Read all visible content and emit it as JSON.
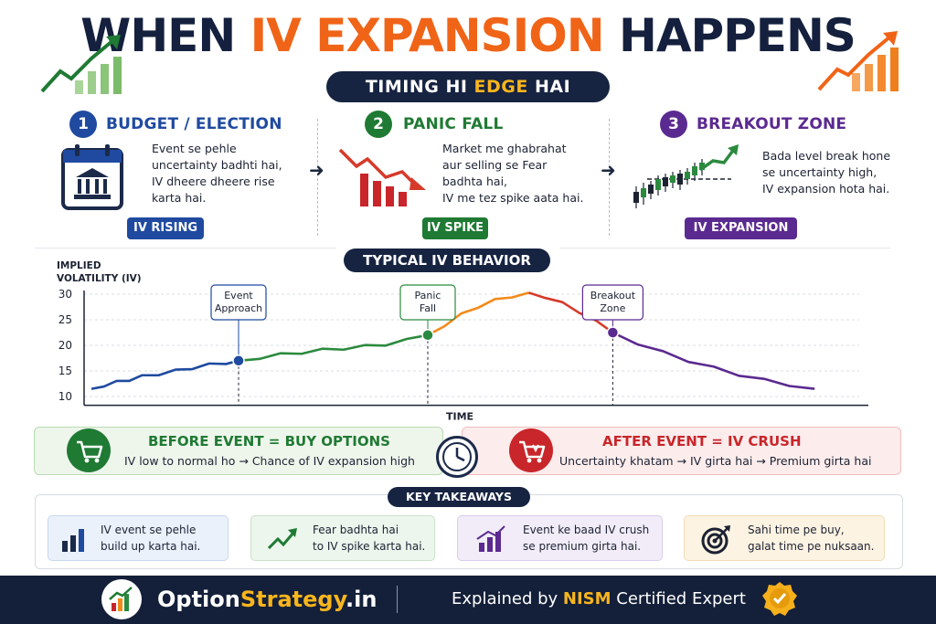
{
  "header": {
    "title_pre": "WHEN ",
    "title_highlight": "IV EXPANSION",
    "title_post": " HAPPENS",
    "subtitle_pre": "TIMING HI ",
    "subtitle_highlight": "EDGE",
    "subtitle_post": " HAI"
  },
  "sections": [
    {
      "number": "1",
      "title": "BUDGET / ELECTION",
      "lines": [
        "Event se pehle",
        "uncertainty badhti hai,",
        "IV dheere dheere rise",
        "karta hai."
      ],
      "tag": "IV RISING",
      "color": "#1f4aa0",
      "icon": "calendar-bank-icon"
    },
    {
      "number": "2",
      "title": "PANIC FALL",
      "lines": [
        "Market me ghabrahat",
        "aur selling se Fear",
        "badhta hai,",
        "IV me tez spike aata hai."
      ],
      "tag": "IV SPIKE",
      "color": "#1f7a33",
      "icon": "falling-bars-icon"
    },
    {
      "number": "3",
      "title": "BREAKOUT ZONE",
      "lines": [
        "Bada level break hone",
        "se uncertainty high,",
        "IV expansion hota hai."
      ],
      "tag": "IV EXPANSION",
      "color": "#5b2a90",
      "icon": "candlestick-breakout-icon"
    }
  ],
  "behavior_label": "TYPICAL IV BEHAVIOR",
  "chart_data": {
    "type": "line",
    "title": "TYPICAL IV BEHAVIOR",
    "ylabel_lines": [
      "IMPLIED",
      "VOLATILITY (IV)"
    ],
    "xlabel": "TIME",
    "yticks": [
      30,
      25,
      20,
      15,
      10
    ],
    "ylim": [
      9,
      31
    ],
    "xlim": [
      0,
      100
    ],
    "grid": "horizontal dashed",
    "series": [
      {
        "color": "#1f4aa0",
        "x": [
          0,
          3,
          6,
          9,
          12,
          16,
          20,
          24,
          28,
          32,
          35
        ],
        "y": [
          11.5,
          12.2,
          12.8,
          13.3,
          13.9,
          14.4,
          15.0,
          15.6,
          16.2,
          16.6,
          17
        ]
      },
      {
        "color": "#2b8a3e",
        "x": [
          35,
          40,
          45,
          50,
          55,
          60,
          65,
          70,
          75,
          80
        ],
        "y": [
          17,
          17.6,
          18.2,
          18.6,
          19.1,
          19.4,
          19.8,
          20.2,
          21.0,
          22
        ]
      },
      {
        "color": "#f28a1a",
        "x": [
          80,
          84,
          88,
          92,
          96,
          100,
          104
        ],
        "y": [
          22,
          24,
          26,
          27.6,
          28.8,
          29.6,
          30.3
        ]
      },
      {
        "color": "#d63a2a",
        "x": [
          104,
          108,
          112,
          116,
          120,
          124
        ],
        "y": [
          30.3,
          29.5,
          28.2,
          26.6,
          24.6,
          22.5
        ]
      },
      {
        "color": "#5b2a90",
        "x": [
          124,
          130,
          136,
          142,
          148,
          154,
          160,
          166,
          172
        ],
        "y": [
          22.5,
          20.4,
          18.6,
          17,
          15.6,
          14.3,
          13.2,
          12.3,
          11.5
        ]
      }
    ],
    "events": [
      {
        "label_lines": [
          "Event",
          "Approach"
        ],
        "x": 35,
        "y": 17,
        "color": "#1f4aa0"
      },
      {
        "label_lines": [
          "Panic",
          "Fall"
        ],
        "x": 80,
        "y": 22,
        "color": "#2b8a3e"
      },
      {
        "label_lines": [
          "Breakout",
          "Zone"
        ],
        "x": 124,
        "y": 22.5,
        "color": "#5b2a90"
      }
    ]
  },
  "before_event": {
    "title": "BEFORE EVENT = BUY OPTIONS",
    "text": "IV low to normal ho → Chance of IV expansion high",
    "color": "#1f7a33",
    "icon": "cart-icon"
  },
  "after_event": {
    "title": "AFTER EVENT = IV CRUSH",
    "text": "Uncertainty khatam → IV girta hai → Premium girta hai",
    "color": "#c8262a",
    "icon": "cart-down-icon"
  },
  "center_icon": "clock-icon",
  "key_takeaways": {
    "label": "KEY TAKEAWAYS",
    "items": [
      {
        "lines": [
          "IV event se pehle",
          "build up karta hai."
        ],
        "icon": "bar-chart-icon",
        "bg": "#eaf1fb",
        "border": "#c8d8ef"
      },
      {
        "lines": [
          "Fear badhta hai",
          "to IV spike karta hai."
        ],
        "icon": "trend-up-icon",
        "bg": "#ecf6ec",
        "border": "#c9e2c9"
      },
      {
        "lines": [
          "Event ke baad IV crush",
          "se premium girta hai."
        ],
        "icon": "bar-arrow-icon",
        "bg": "#f1ecf8",
        "border": "#d9cdec"
      },
      {
        "lines": [
          "Sahi time pe buy,",
          "galat time pe nuksaan."
        ],
        "icon": "target-icon",
        "bg": "#fdf3e2",
        "border": "#f0dcb6"
      }
    ]
  },
  "footer": {
    "brand_pre": "Option",
    "brand_highlight": "Strategy",
    "brand_post": ".in",
    "expl_pre": "Explained by ",
    "expl_highlight": "NISM",
    "expl_post": " Certified Expert",
    "logo_icon": "chart-logo-icon",
    "badge_icon": "certified-badge-icon"
  }
}
